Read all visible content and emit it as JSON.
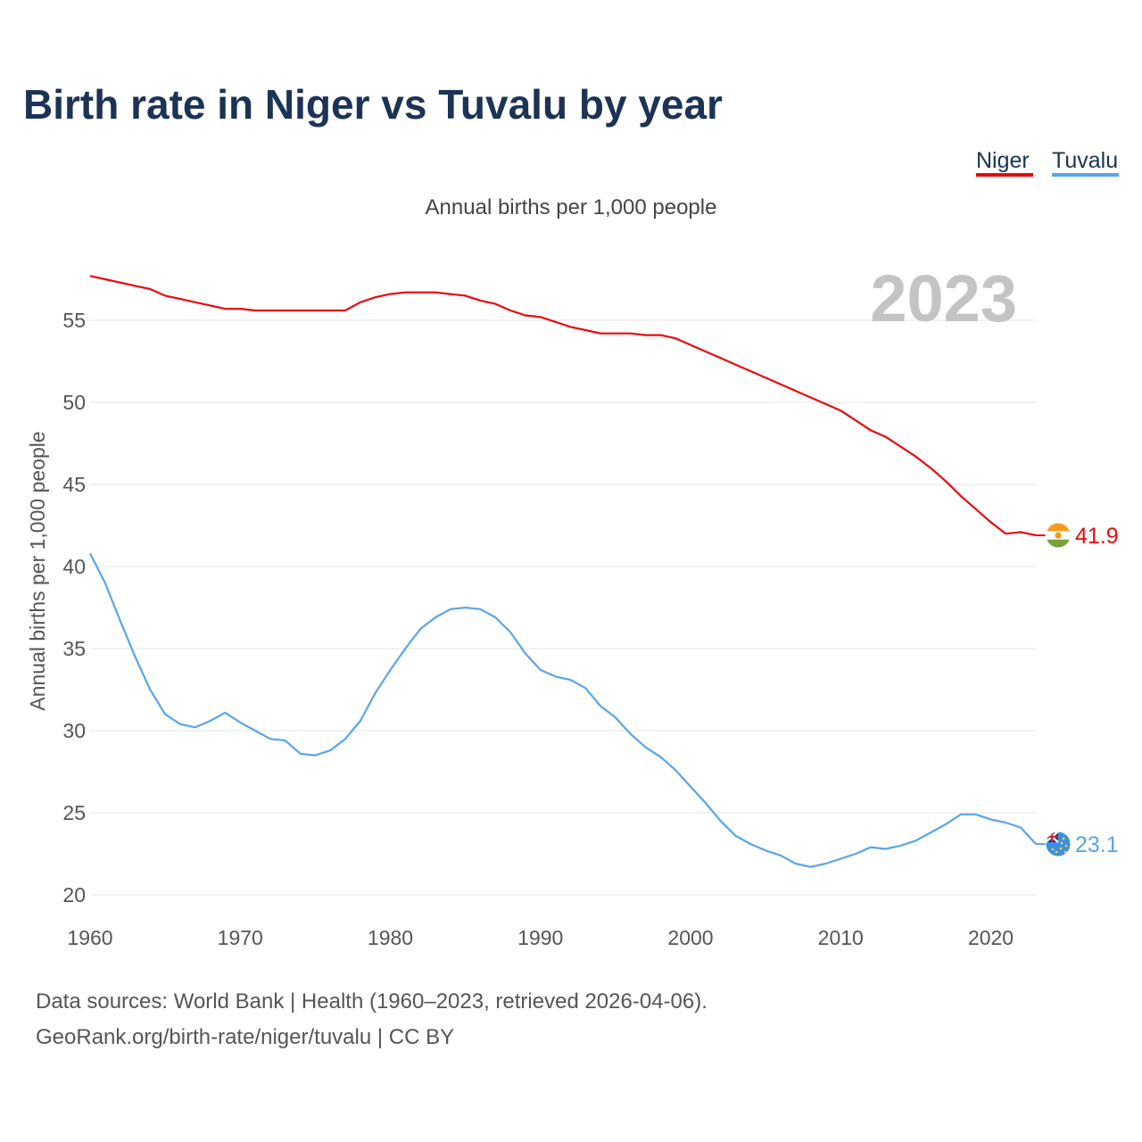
{
  "chart_data": {
    "type": "line",
    "title": "Birth rate in Niger vs Tuvalu by year",
    "subtitle": "Annual births per 1,000 people",
    "ylabel": "Annual births per 1,000 people",
    "xlabel": "",
    "year_highlight": "2023",
    "xlim": [
      1960,
      2023
    ],
    "ylim": [
      20,
      58
    ],
    "y_ticks": [
      20,
      25,
      30,
      35,
      40,
      45,
      50,
      55
    ],
    "x_ticks": [
      1960,
      1970,
      1980,
      1990,
      2000,
      2010,
      2020
    ],
    "grid": true,
    "legend_position": "top-right",
    "x": [
      1960,
      1961,
      1962,
      1963,
      1964,
      1965,
      1966,
      1967,
      1968,
      1969,
      1970,
      1971,
      1972,
      1973,
      1974,
      1975,
      1976,
      1977,
      1978,
      1979,
      1980,
      1981,
      1982,
      1983,
      1984,
      1985,
      1986,
      1987,
      1988,
      1989,
      1990,
      1991,
      1992,
      1993,
      1994,
      1995,
      1996,
      1997,
      1998,
      1999,
      2000,
      2001,
      2002,
      2003,
      2004,
      2005,
      2006,
      2007,
      2008,
      2009,
      2010,
      2011,
      2012,
      2013,
      2014,
      2015,
      2016,
      2017,
      2018,
      2019,
      2020,
      2021,
      2022,
      2023
    ],
    "series": [
      {
        "name": "Niger",
        "color": "#e8090f",
        "end_label": "41.9",
        "flag": "niger-flag",
        "values": [
          57.7,
          57.5,
          57.3,
          57.1,
          56.9,
          56.5,
          56.3,
          56.1,
          55.9,
          55.7,
          55.7,
          55.6,
          55.6,
          55.6,
          55.6,
          55.6,
          55.6,
          55.6,
          56.1,
          56.4,
          56.6,
          56.7,
          56.7,
          56.7,
          56.6,
          56.5,
          56.2,
          56.0,
          55.6,
          55.3,
          55.2,
          54.9,
          54.6,
          54.4,
          54.2,
          54.2,
          54.2,
          54.1,
          54.1,
          53.9,
          53.5,
          53.1,
          52.7,
          52.3,
          51.9,
          51.5,
          51.1,
          50.7,
          50.3,
          49.9,
          49.5,
          48.9,
          48.3,
          47.9,
          47.3,
          46.7,
          46.0,
          45.2,
          44.3,
          43.5,
          42.7,
          42.0,
          42.1,
          41.9
        ]
      },
      {
        "name": "Tuvalu",
        "color": "#5aa5e6",
        "end_label": "23.1",
        "flag": "tuvalu-flag",
        "values": [
          40.8,
          39.0,
          36.7,
          34.5,
          32.5,
          31.0,
          30.4,
          30.2,
          30.6,
          31.1,
          30.5,
          30.0,
          29.5,
          29.4,
          28.6,
          28.5,
          28.8,
          29.5,
          30.6,
          32.3,
          33.7,
          35.0,
          36.2,
          36.9,
          37.4,
          37.5,
          37.4,
          36.9,
          36.0,
          34.7,
          33.7,
          33.3,
          33.1,
          32.6,
          31.5,
          30.8,
          29.8,
          29.0,
          28.4,
          27.6,
          26.6,
          25.6,
          24.5,
          23.6,
          23.1,
          22.7,
          22.4,
          21.9,
          21.7,
          21.9,
          22.2,
          22.5,
          22.9,
          22.8,
          23.0,
          23.3,
          23.8,
          24.3,
          24.9,
          24.9,
          24.6,
          24.4,
          24.1,
          23.1
        ]
      }
    ]
  },
  "legend": {
    "niger": "Niger",
    "tuvalu": "Tuvalu"
  },
  "footer": {
    "source_line": "Data sources: World Bank | Health (1960–2023, retrieved 2026-04-06).",
    "credit_line": "GeoRank.org/birth-rate/niger/tuvalu | CC BY"
  },
  "colors": {
    "title": "#1b3354",
    "grid": "#e6e6e6",
    "year_watermark": "#c4c4c4"
  }
}
